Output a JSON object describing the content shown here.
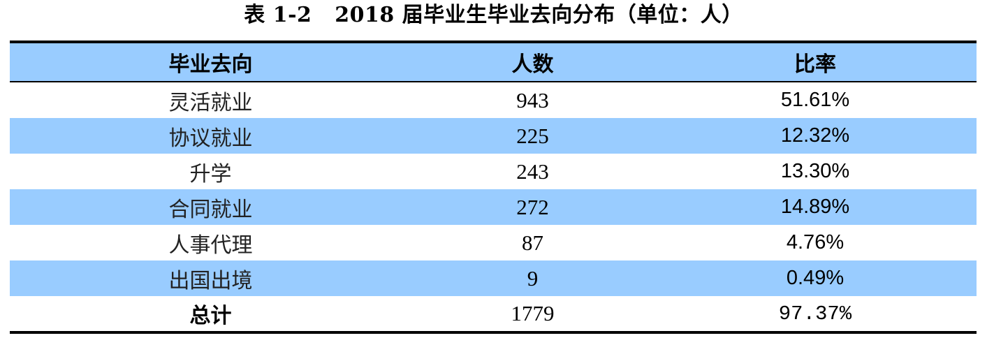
{
  "caption": "表 1-2   2018 届毕业生毕业去向分布（单位：人）",
  "headers": {
    "destination": "毕业去向",
    "count": "人数",
    "ratio": "比率"
  },
  "rows": [
    {
      "destination": "灵活就业",
      "count": "943",
      "ratio": "51.61%"
    },
    {
      "destination": "协议就业",
      "count": "225",
      "ratio": "12.32%"
    },
    {
      "destination": "升学",
      "count": "243",
      "ratio": "13.30%"
    },
    {
      "destination": "合同就业",
      "count": "272",
      "ratio": "14.89%"
    },
    {
      "destination": "人事代理",
      "count": "87",
      "ratio": "4.76%"
    },
    {
      "destination": "出国出境",
      "count": "9",
      "ratio": "0.49%"
    }
  ],
  "total": {
    "label": "总计",
    "count": "1779",
    "ratio": "97.37%"
  },
  "colors": {
    "header_fill": "#99ccff",
    "shaded_row_fill": "#99ccff",
    "rule": "#000000"
  }
}
